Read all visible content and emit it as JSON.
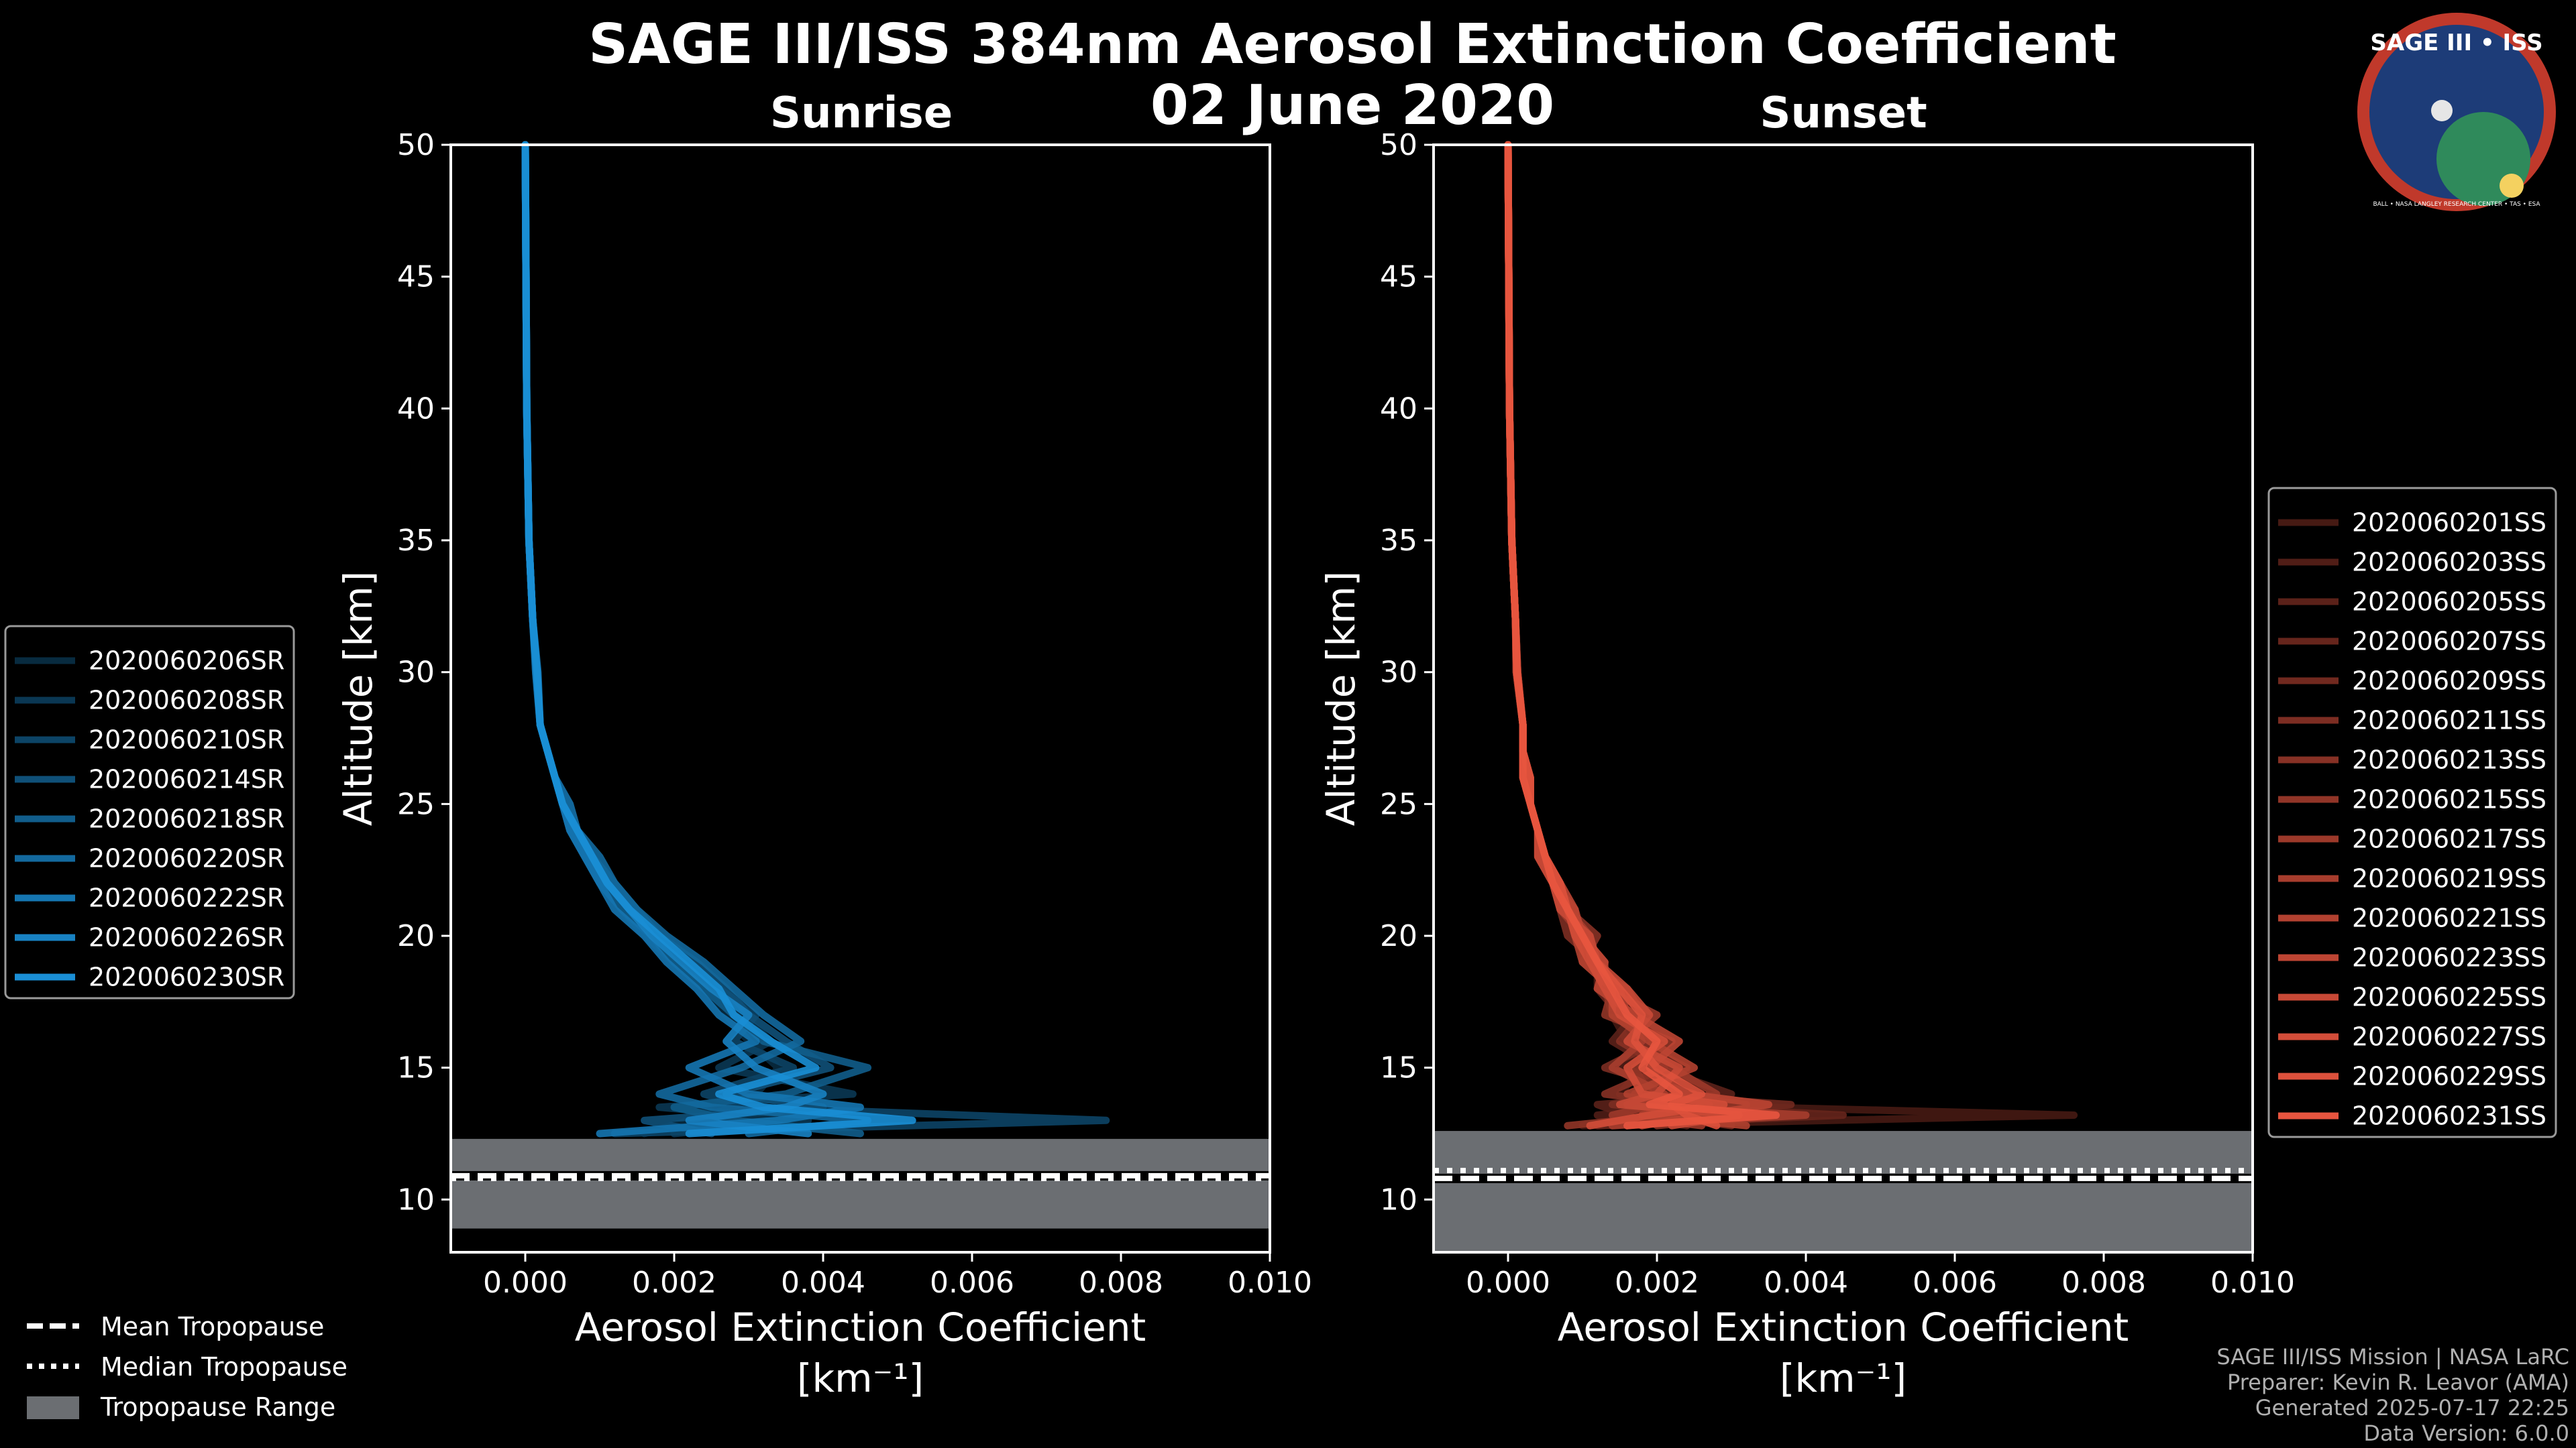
{
  "title_line1": "SAGE III/ISS 384nm Aerosol Extinction Coefficient",
  "title_line2": "02 June 2020",
  "logo": {
    "text": "SAGE III • ISS",
    "ring_text": "BALL • NASA LANGLEY RESEARCH CENTER • TAS • ESA"
  },
  "credits": [
    "SAGE III/ISS Mission | NASA LaRC",
    "Preparer: Kevin R. Leavor (AMA)",
    "Generated 2025-07-17 22:25",
    "Data Version: 6.0.0"
  ],
  "tropo_legend": [
    "Mean Tropopause",
    "Median Tropopause",
    "Tropopause Range"
  ],
  "colors": {
    "sunrise": "#1a8fd6",
    "sunset": "#e8553f",
    "range": "#6b6e72",
    "background": "#000000"
  },
  "chart_data": [
    {
      "type": "line",
      "title": "Sunrise",
      "xlabel": "Aerosol Extinction Coefficient",
      "xlabel_units": "[km⁻¹]",
      "ylabel": "Altitude [km]",
      "xlim": [
        -0.001,
        0.01
      ],
      "ylim": [
        8,
        50
      ],
      "xticks": [
        0.0,
        0.002,
        0.004,
        0.006,
        0.008,
        0.01
      ],
      "xtick_labels": [
        "0.000",
        "0.002",
        "0.004",
        "0.006",
        "0.008",
        "0.010"
      ],
      "yticks": [
        10,
        15,
        20,
        25,
        30,
        35,
        40,
        45,
        50
      ],
      "legend_position": "left-outside",
      "tropopause": {
        "mean": 10.9,
        "median": 10.8,
        "range": [
          8.9,
          12.3
        ]
      },
      "altitudes": [
        12.5,
        13.0,
        13.5,
        14.0,
        15.0,
        16.0,
        17.0,
        18.0,
        19.0,
        20.0,
        21.0,
        22.0,
        23.0,
        24.0,
        25.0,
        26.0,
        27.0,
        28.0,
        30.0,
        32.0,
        35.0,
        40.0,
        45.0,
        50.0
      ],
      "series": [
        {
          "name": "2020060206SR",
          "values": [
            0.0016,
            0.0022,
            0.0028,
            0.0031,
            0.0034,
            0.003,
            0.0027,
            0.0024,
            0.002,
            0.0016,
            0.0013,
            0.001,
            0.0008,
            0.0006,
            0.0005,
            0.0004,
            0.0003,
            0.0002,
            0.00015,
            0.0001,
            5e-05,
            2e-05,
            1e-05,
            0.0
          ]
        },
        {
          "name": "2020060208SR",
          "values": [
            0.002,
            0.0038,
            0.0018,
            0.0044,
            0.0026,
            0.0033,
            0.0029,
            0.0025,
            0.0021,
            0.0017,
            0.0014,
            0.0011,
            0.0009,
            0.0007,
            0.0005,
            0.0004,
            0.0003,
            0.0002,
            0.00014,
            0.0001,
            5e-05,
            2e-05,
            1e-05,
            0.0
          ]
        },
        {
          "name": "2020060210SR",
          "values": [
            0.0012,
            0.0078,
            0.003,
            0.0024,
            0.0036,
            0.0028,
            0.0031,
            0.0026,
            0.0022,
            0.0018,
            0.0014,
            0.0011,
            0.0009,
            0.0007,
            0.0005,
            0.0004,
            0.0003,
            0.0002,
            0.00016,
            0.0001,
            5e-05,
            2e-05,
            1e-05,
            0.0
          ]
        },
        {
          "name": "2020060214SR",
          "values": [
            0.0025,
            0.0016,
            0.004,
            0.0027,
            0.0041,
            0.0035,
            0.003,
            0.0027,
            0.0023,
            0.0018,
            0.0015,
            0.0012,
            0.0009,
            0.0007,
            0.0006,
            0.0004,
            0.0003,
            0.0002,
            0.00016,
            0.0001,
            5e-05,
            2e-05,
            1e-05,
            0.0
          ]
        },
        {
          "name": "2020060218SR",
          "values": [
            0.0045,
            0.0028,
            0.002,
            0.0035,
            0.0046,
            0.0032,
            0.0028,
            0.0024,
            0.002,
            0.0017,
            0.0013,
            0.001,
            0.0008,
            0.0006,
            0.0005,
            0.0004,
            0.0003,
            0.0002,
            0.00015,
            0.0001,
            5e-05,
            2e-05,
            1e-05,
            0.0
          ]
        },
        {
          "name": "2020060220SR",
          "values": [
            0.003,
            0.0046,
            0.0025,
            0.0018,
            0.0029,
            0.0037,
            0.0032,
            0.0028,
            0.0024,
            0.0019,
            0.0015,
            0.0012,
            0.001,
            0.0007,
            0.0006,
            0.0004,
            0.0003,
            0.0002,
            0.00017,
            0.0001,
            5e-05,
            2e-05,
            1e-05,
            0.0
          ]
        },
        {
          "name": "2020060222SR",
          "values": [
            0.001,
            0.0034,
            0.0045,
            0.003,
            0.0022,
            0.0031,
            0.0026,
            0.0023,
            0.0019,
            0.0016,
            0.0012,
            0.001,
            0.0008,
            0.0006,
            0.0005,
            0.0004,
            0.0003,
            0.0002,
            0.00014,
            0.0001,
            5e-05,
            2e-05,
            1e-05,
            0.0
          ]
        },
        {
          "name": "2020060226SR",
          "values": [
            0.0038,
            0.0022,
            0.0035,
            0.004,
            0.0031,
            0.0027,
            0.003,
            0.0025,
            0.0021,
            0.0017,
            0.0014,
            0.0011,
            0.0009,
            0.0007,
            0.0005,
            0.0004,
            0.0003,
            0.0002,
            0.00015,
            0.0001,
            5e-05,
            2e-05,
            1e-05,
            0.0
          ]
        },
        {
          "name": "2020060230SR",
          "values": [
            0.0022,
            0.0052,
            0.0032,
            0.0026,
            0.0039,
            0.0033,
            0.0028,
            0.0026,
            0.0022,
            0.0018,
            0.0014,
            0.0011,
            0.0009,
            0.0007,
            0.0005,
            0.0004,
            0.0003,
            0.0002,
            0.00016,
            0.0001,
            5e-05,
            2e-05,
            1e-05,
            0.0
          ]
        }
      ]
    },
    {
      "type": "line",
      "title": "Sunset",
      "xlabel": "Aerosol Extinction Coefficient",
      "xlabel_units": "[km⁻¹]",
      "ylabel": "Altitude [km]",
      "xlim": [
        -0.001,
        0.01
      ],
      "ylim": [
        8,
        50
      ],
      "xticks": [
        0.0,
        0.002,
        0.004,
        0.006,
        0.008,
        0.01
      ],
      "xtick_labels": [
        "0.000",
        "0.002",
        "0.004",
        "0.006",
        "0.008",
        "0.010"
      ],
      "yticks": [
        10,
        15,
        20,
        25,
        30,
        35,
        40,
        45,
        50
      ],
      "legend_position": "right-outside",
      "tropopause": {
        "mean": 10.8,
        "median": 11.1,
        "range": [
          8.0,
          12.6
        ]
      },
      "altitudes": [
        12.8,
        13.2,
        13.6,
        14.0,
        15.0,
        16.0,
        17.0,
        18.0,
        19.0,
        20.0,
        21.0,
        22.0,
        23.0,
        24.0,
        25.0,
        26.0,
        27.0,
        28.0,
        30.0,
        32.0,
        35.0,
        40.0,
        45.0,
        50.0
      ],
      "series": [
        {
          "name": "2020060201SS",
          "values": [
            0.001,
            0.0076,
            0.002,
            0.0015,
            0.0018,
            0.0016,
            0.0014,
            0.0013,
            0.0011,
            0.001,
            0.0008,
            0.0006,
            0.0005,
            0.0004,
            0.0003,
            0.0003,
            0.0002,
            0.0002,
            0.00012,
            0.0001,
            5e-05,
            2e-05,
            1e-05,
            0.0
          ]
        },
        {
          "name": "2020060203SS",
          "values": [
            0.0018,
            0.0012,
            0.0026,
            0.002,
            0.0015,
            0.0019,
            0.0016,
            0.0012,
            0.0012,
            0.0009,
            0.0008,
            0.0006,
            0.0005,
            0.0004,
            0.0003,
            0.0003,
            0.0002,
            0.0002,
            0.00012,
            0.0001,
            5e-05,
            2e-05,
            1e-05,
            0.0
          ]
        },
        {
          "name": "2020060205SS",
          "values": [
            0.0024,
            0.0016,
            0.0012,
            0.003,
            0.002,
            0.0014,
            0.0017,
            0.0014,
            0.001,
            0.001,
            0.0007,
            0.0006,
            0.0004,
            0.0004,
            0.0003,
            0.0002,
            0.0002,
            0.0002,
            0.00011,
            0.0001,
            5e-05,
            2e-05,
            1e-05,
            0.0
          ]
        },
        {
          "name": "2020060207SS",
          "values": [
            0.0012,
            0.0045,
            0.0018,
            0.0022,
            0.0016,
            0.0021,
            0.0015,
            0.0012,
            0.0013,
            0.0009,
            0.0008,
            0.0006,
            0.0005,
            0.0004,
            0.0003,
            0.0003,
            0.0002,
            0.0002,
            0.00012,
            0.0001,
            5e-05,
            2e-05,
            1e-05,
            0.0
          ]
        },
        {
          "name": "2020060209SS",
          "values": [
            0.003,
            0.002,
            0.0038,
            0.0017,
            0.0024,
            0.0017,
            0.0019,
            0.0015,
            0.0011,
            0.0011,
            0.0008,
            0.0007,
            0.0005,
            0.0004,
            0.0003,
            0.0003,
            0.0002,
            0.0002,
            0.00013,
            0.0001,
            5e-05,
            2e-05,
            1e-05,
            0.0
          ]
        },
        {
          "name": "2020060211SS",
          "values": [
            0.0016,
            0.0028,
            0.0014,
            0.0025,
            0.0013,
            0.002,
            0.0014,
            0.0013,
            0.0012,
            0.0008,
            0.0007,
            0.0006,
            0.0004,
            0.0004,
            0.0003,
            0.0002,
            0.0002,
            0.0002,
            0.00011,
            0.0001,
            5e-05,
            2e-05,
            1e-05,
            0.0
          ]
        },
        {
          "name": "2020060213SS",
          "values": [
            0.002,
            0.0035,
            0.0024,
            0.0013,
            0.0021,
            0.0015,
            0.0018,
            0.0016,
            0.001,
            0.0012,
            0.0008,
            0.0007,
            0.0005,
            0.0004,
            0.0003,
            0.0003,
            0.0002,
            0.0002,
            0.00012,
            0.0001,
            5e-05,
            2e-05,
            1e-05,
            0.0
          ]
        },
        {
          "name": "2020060215SS",
          "values": [
            0.0008,
            0.0022,
            0.0032,
            0.0019,
            0.0017,
            0.0022,
            0.0013,
            0.0014,
            0.0012,
            0.0009,
            0.0009,
            0.0006,
            0.0005,
            0.0004,
            0.0003,
            0.0002,
            0.0002,
            0.0002,
            0.00012,
            0.0001,
            5e-05,
            2e-05,
            1e-05,
            0.0
          ]
        },
        {
          "name": "2020060217SS",
          "values": [
            0.0026,
            0.0014,
            0.002,
            0.0028,
            0.0022,
            0.0016,
            0.002,
            0.0013,
            0.0013,
            0.001,
            0.0007,
            0.0007,
            0.0004,
            0.0004,
            0.0003,
            0.0003,
            0.0002,
            0.0002,
            0.00013,
            0.0001,
            5e-05,
            2e-05,
            1e-05,
            0.0
          ]
        },
        {
          "name": "2020060219SS",
          "values": [
            0.0014,
            0.004,
            0.0016,
            0.0021,
            0.0014,
            0.0018,
            0.0016,
            0.0015,
            0.0011,
            0.0011,
            0.0008,
            0.0006,
            0.0005,
            0.0004,
            0.0003,
            0.0003,
            0.0002,
            0.0002,
            0.00012,
            0.0001,
            5e-05,
            2e-05,
            1e-05,
            0.0
          ]
        },
        {
          "name": "2020060221SS",
          "values": [
            0.0032,
            0.0018,
            0.0027,
            0.0016,
            0.0025,
            0.0019,
            0.0014,
            0.0014,
            0.001,
            0.0009,
            0.0008,
            0.0006,
            0.0005,
            0.0004,
            0.0003,
            0.0002,
            0.0002,
            0.0002,
            0.00011,
            0.0001,
            5e-05,
            2e-05,
            1e-05,
            0.0
          ]
        },
        {
          "name": "2020060223SS",
          "values": [
            0.0018,
            0.0026,
            0.0035,
            0.0024,
            0.0019,
            0.0023,
            0.0017,
            0.0012,
            0.0013,
            0.001,
            0.0009,
            0.0007,
            0.0005,
            0.0004,
            0.0003,
            0.0003,
            0.0002,
            0.0002,
            0.00013,
            0.0001,
            5e-05,
            2e-05,
            1e-05,
            0.0
          ]
        },
        {
          "name": "2020060225SS",
          "values": [
            0.0022,
            0.0031,
            0.0015,
            0.002,
            0.0023,
            0.0016,
            0.0019,
            0.0016,
            0.0012,
            0.0011,
            0.0007,
            0.0006,
            0.0004,
            0.0004,
            0.0003,
            0.0002,
            0.0002,
            0.0002,
            0.00012,
            0.0001,
            5e-05,
            2e-05,
            1e-05,
            0.0
          ]
        },
        {
          "name": "2020060227SS",
          "values": [
            0.0011,
            0.0019,
            0.0029,
            0.0018,
            0.0016,
            0.0021,
            0.0015,
            0.0013,
            0.0011,
            0.0009,
            0.0008,
            0.0006,
            0.0005,
            0.0004,
            0.0003,
            0.0003,
            0.0002,
            0.0002,
            0.00012,
            0.0001,
            5e-05,
            2e-05,
            1e-05,
            0.0
          ]
        },
        {
          "name": "2020060229SS",
          "values": [
            0.0028,
            0.0024,
            0.0022,
            0.0026,
            0.002,
            0.0017,
            0.0018,
            0.0015,
            0.0012,
            0.001,
            0.0008,
            0.0007,
            0.0005,
            0.0004,
            0.0003,
            0.0003,
            0.0002,
            0.0002,
            0.00012,
            0.0001,
            5e-05,
            2e-05,
            1e-05,
            0.0
          ]
        },
        {
          "name": "2020060231SS",
          "values": [
            0.0016,
            0.0036,
            0.0019,
            0.0023,
            0.0018,
            0.002,
            0.0016,
            0.0014,
            0.0012,
            0.001,
            0.0008,
            0.0006,
            0.0005,
            0.0004,
            0.0003,
            0.0002,
            0.0002,
            0.0002,
            0.00012,
            0.0001,
            5e-05,
            2e-05,
            1e-05,
            0.0
          ]
        }
      ]
    }
  ]
}
